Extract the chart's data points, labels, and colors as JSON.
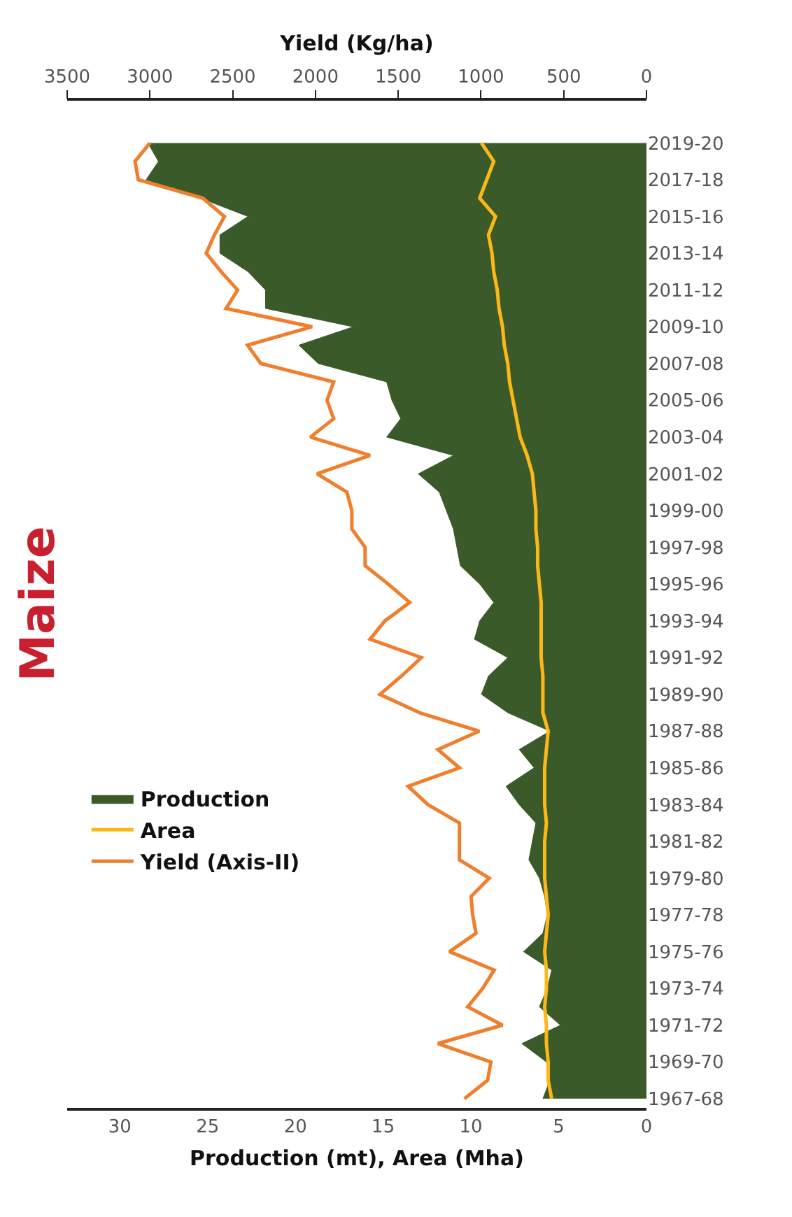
{
  "chart_data": {
    "type": "area",
    "orientation": "horizontal",
    "title": "Maize",
    "xlabel": "Production (mt), Area (Mha)",
    "x2label": "Yield (Kg/ha)",
    "categories": [
      "2019-20",
      null,
      "2017-18",
      null,
      "2015-16",
      null,
      "2013-14",
      null,
      "2011-12",
      null,
      "2009-10",
      null,
      "2007-08",
      null,
      "2005-06",
      null,
      "2003-04",
      null,
      "2001-02",
      null,
      "1999-00",
      null,
      "1997-98",
      null,
      "1995-96",
      null,
      "1993-94",
      null,
      "1991-92",
      null,
      "1989-90",
      null,
      "1987-88",
      null,
      "1985-86",
      null,
      "1983-84",
      null,
      "1981-82",
      null,
      "1979-80",
      null,
      "1977-78",
      null,
      "1975-76",
      null,
      "1973-74",
      null,
      "1971-72",
      null,
      "1969-70",
      null,
      "1967-68"
    ],
    "series": [
      {
        "name": "Production",
        "color": "#3b5a2a",
        "values": [
          28.4,
          27.8,
          28.5,
          25.4,
          22.7,
          24.3,
          24.3,
          22.7,
          21.7,
          21.7,
          16.7,
          19.8,
          18.7,
          14.8,
          14.5,
          14.0,
          14.8,
          11.0,
          13.0,
          11.8,
          11.4,
          11.0,
          10.8,
          10.6,
          9.5,
          8.7,
          9.5,
          9.8,
          7.9,
          9.0,
          9.4,
          7.9,
          5.5,
          7.25,
          6.4,
          8.0,
          7.25,
          6.3,
          6.5,
          6.7,
          6.1,
          5.8,
          5.65,
          5.9,
          7.0,
          5.4,
          5.65,
          6.1,
          4.9,
          7.1,
          5.7,
          5.5,
          5.9
        ]
      },
      {
        "name": "Area",
        "type": "line",
        "color": "#fbb817",
        "values": [
          9.4,
          8.7,
          9.1,
          9.5,
          8.6,
          9.0,
          8.8,
          8.7,
          8.5,
          8.4,
          8.2,
          8.1,
          7.9,
          7.8,
          7.6,
          7.4,
          7.2,
          6.8,
          6.5,
          6.4,
          6.3,
          6.3,
          6.2,
          6.2,
          6.1,
          6.0,
          6.0,
          6.0,
          6.0,
          5.9,
          5.9,
          5.9,
          5.6,
          5.7,
          5.8,
          5.8,
          5.8,
          5.7,
          5.8,
          5.8,
          5.8,
          5.7,
          5.6,
          5.7,
          5.8,
          5.7,
          5.7,
          5.8,
          5.7,
          5.7,
          5.6,
          5.6,
          5.4
        ]
      },
      {
        "name": "Yield (Axis-II)",
        "type": "line",
        "axis": "x2",
        "color": "#f07f2d",
        "values": [
          3000,
          3090,
          3070,
          2680,
          2550,
          2610,
          2660,
          2570,
          2470,
          2540,
          2020,
          2410,
          2330,
          1890,
          1930,
          1890,
          2030,
          1670,
          1990,
          1810,
          1780,
          1780,
          1700,
          1700,
          1560,
          1430,
          1580,
          1670,
          1360,
          1480,
          1610,
          1370,
          1010,
          1260,
          1130,
          1440,
          1320,
          1130,
          1130,
          1130,
          950,
          1060,
          1050,
          1030,
          1190,
          920,
          990,
          1080,
          870,
          1260,
          940,
          960,
          1100
        ]
      }
    ],
    "xlim": [
      33,
      0
    ],
    "xticks": [
      0,
      5,
      10,
      15,
      20,
      25,
      30
    ],
    "x2lim": [
      3500,
      0
    ],
    "x2ticks": [
      0,
      500,
      1000,
      1500,
      2000,
      2500,
      3000,
      3500
    ],
    "grid": false,
    "legend": "left",
    "marker": "none",
    "line_style": "solid"
  }
}
